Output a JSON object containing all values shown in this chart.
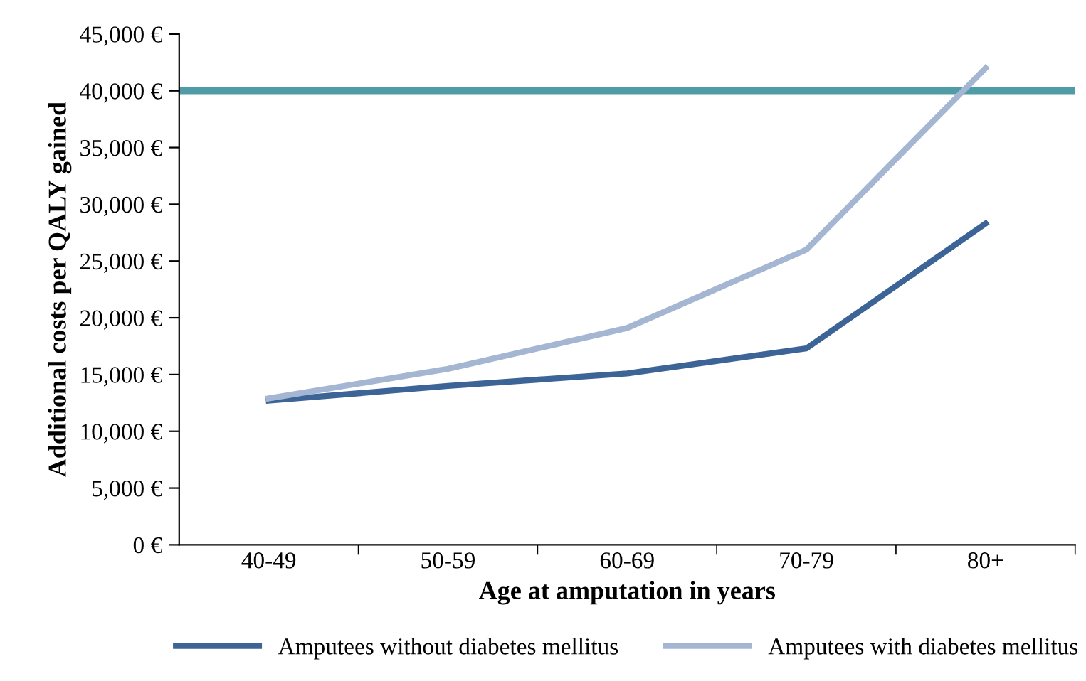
{
  "chart_data": {
    "type": "line",
    "xlabel": "Age at amputation in years",
    "ylabel": "Additional costs per QALY gained",
    "categories": [
      "40-49",
      "50-59",
      "60-69",
      "70-79",
      "80+"
    ],
    "series": [
      {
        "name": "Amputees without diabetes mellitus",
        "color": "#3d6496",
        "values": [
          12700,
          14000,
          15100,
          17300,
          28300
        ]
      },
      {
        "name": "Amputees with diabetes mellitus",
        "color": "#a5b6d2",
        "values": [
          12900,
          15500,
          19100,
          26000,
          42000
        ]
      }
    ],
    "ylim": [
      0,
      45000
    ],
    "yticks": [
      {
        "value": 0,
        "label": "0 €"
      },
      {
        "value": 5000,
        "label": "5,000 €"
      },
      {
        "value": 10000,
        "label": "10,000 €"
      },
      {
        "value": 15000,
        "label": "15,000 €"
      },
      {
        "value": 20000,
        "label": "20,000 €"
      },
      {
        "value": 25000,
        "label": "25,000 €"
      },
      {
        "value": 30000,
        "label": "30,000 €"
      },
      {
        "value": 35000,
        "label": "35,000 €"
      },
      {
        "value": 40000,
        "label": "40,000 €"
      },
      {
        "value": 45000,
        "label": "45,000 €"
      }
    ],
    "ref_lines": [
      {
        "axis": "y",
        "value": 40000,
        "label": null,
        "color": "#4f9ba6"
      }
    ],
    "legend": "bottom",
    "grid": false,
    "marker": "none",
    "line_style": "solid"
  }
}
